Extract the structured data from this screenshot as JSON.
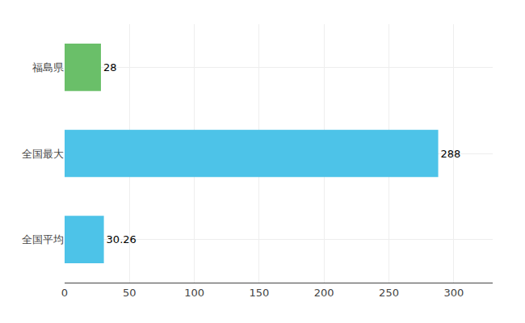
{
  "chart_data": {
    "type": "bar",
    "orientation": "horizontal",
    "categories": [
      "全国平均",
      "全国最大",
      "福島県"
    ],
    "values": [
      30.26,
      288,
      28
    ],
    "colors": [
      "#4dc3e8",
      "#4dc3e8",
      "#6abf69"
    ],
    "xlim": [
      0,
      330
    ],
    "xticks": [
      0,
      50,
      100,
      150,
      200,
      250,
      300
    ],
    "grid": true,
    "data_labels": true
  }
}
